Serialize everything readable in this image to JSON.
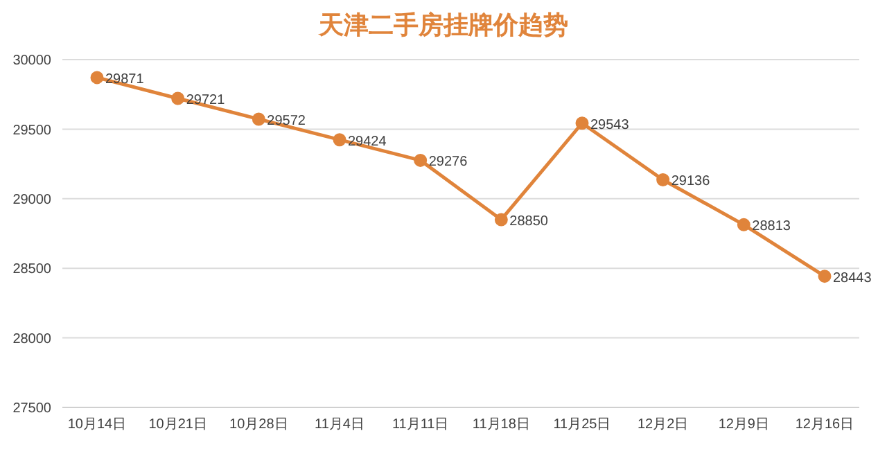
{
  "chart_data": {
    "type": "line",
    "title": "天津二手房挂牌价趋势",
    "categories": [
      "10月14日",
      "10月21日",
      "10月28日",
      "11月4日",
      "11月11日",
      "11月18日",
      "11月25日",
      "12月2日",
      "12月9日",
      "12月16日"
    ],
    "series": [
      {
        "color": "#e0843b",
        "values": [
          29871,
          29721,
          29572,
          29424,
          29276,
          28850,
          29543,
          29136,
          28813,
          28443
        ]
      }
    ],
    "ylim": [
      27500,
      30000
    ],
    "yticks": [
      27500,
      28000,
      28500,
      29000,
      29500,
      30000
    ],
    "grid": "y",
    "marker": "circle",
    "data_labels": true
  }
}
